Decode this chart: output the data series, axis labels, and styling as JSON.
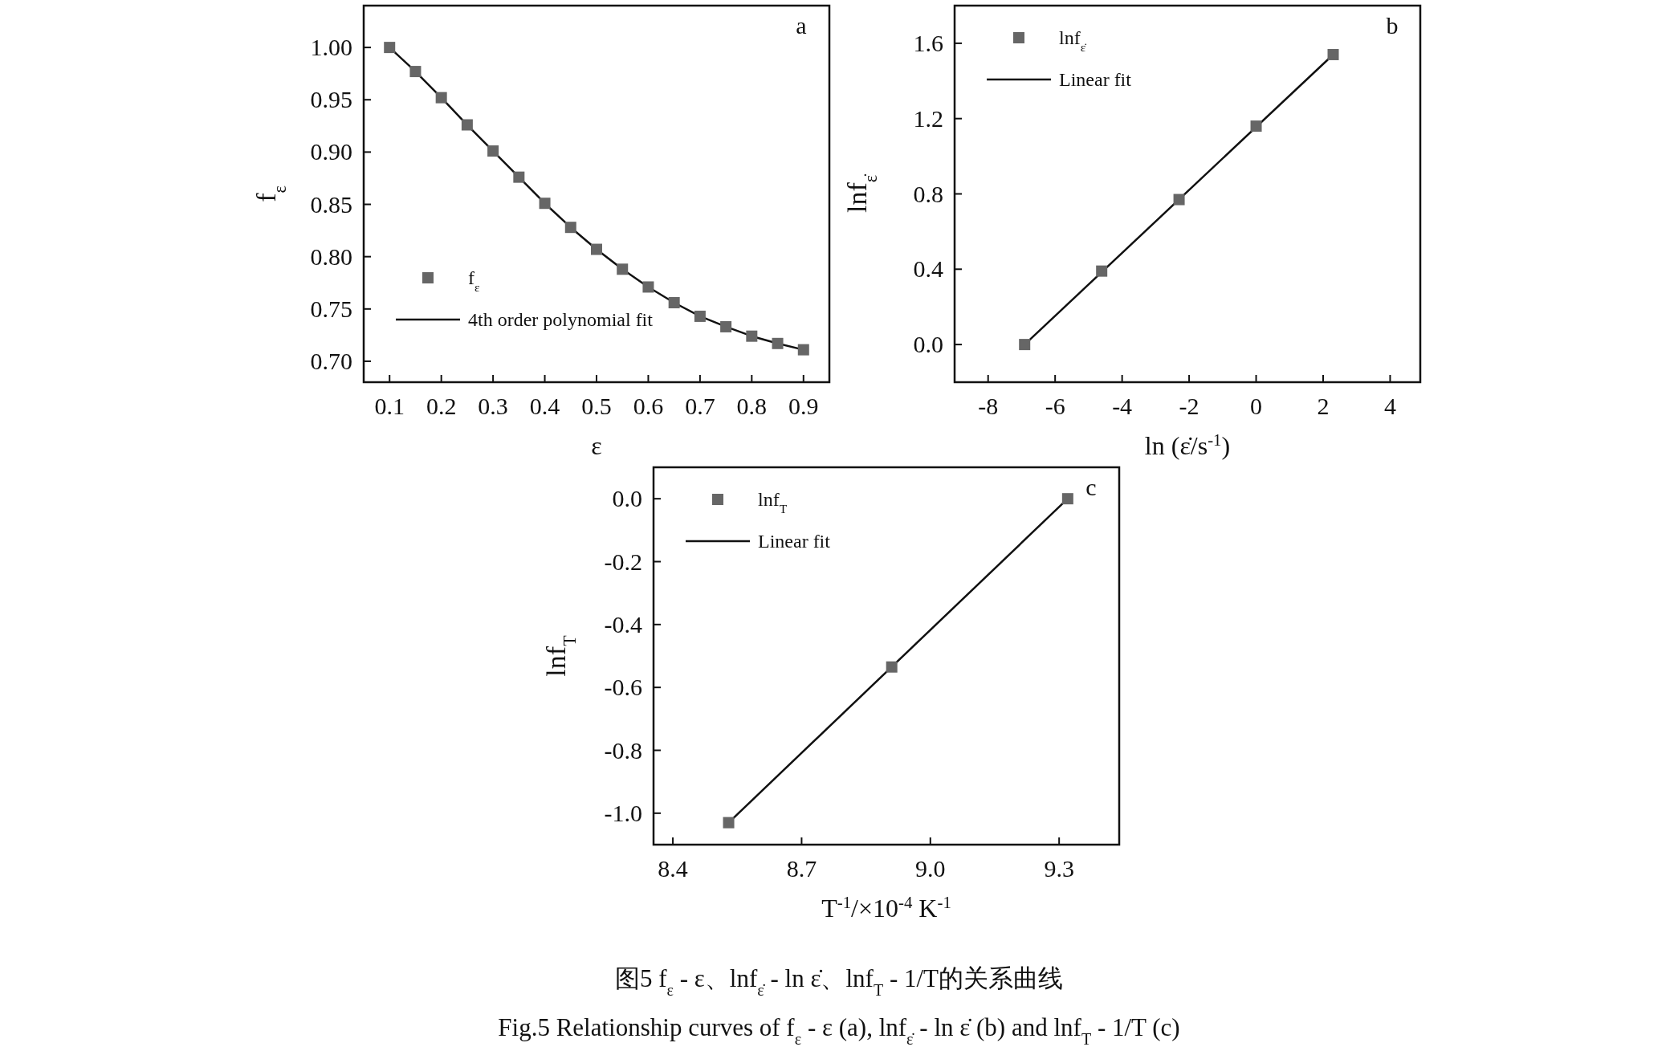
{
  "chart_data": [
    {
      "type": "scatter",
      "xlabel": "ε",
      "ylabel": "f$_{ε}$",
      "xlim": [
        0.05,
        0.95
      ],
      "ylim": [
        0.68,
        1.04
      ],
      "xticks": [
        0.1,
        0.2,
        0.3,
        0.4,
        0.5,
        0.6,
        0.7,
        0.8,
        0.9
      ],
      "yticks": [
        {
          "value": 0.7,
          "label": "0.70"
        },
        0.75,
        {
          "value": 0.8,
          "label": "0.80"
        },
        0.85,
        {
          "value": 0.9,
          "label": "0.90"
        },
        0.95,
        {
          "value": 1.0,
          "label": "1.00"
        }
      ],
      "legend": "bottom left",
      "grid": false,
      "annotations": [
        "a"
      ],
      "series": [
        {
          "name": "f$_{ε}$",
          "marker": "square",
          "color": "#666666",
          "x": [
            0.1,
            0.15,
            0.2,
            0.25,
            0.3,
            0.35,
            0.4,
            0.45,
            0.5,
            0.55,
            0.6,
            0.65,
            0.7,
            0.75,
            0.8,
            0.85,
            0.9
          ],
          "values": [
            1.0,
            0.977,
            0.952,
            0.926,
            0.901,
            0.876,
            0.851,
            0.828,
            0.807,
            0.788,
            0.771,
            0.756,
            0.743,
            0.733,
            0.724,
            0.717,
            0.711
          ]
        },
        {
          "name": "4th order polynomial fit",
          "type": "line",
          "color": "#111111",
          "x": [
            0.1,
            0.15,
            0.2,
            0.25,
            0.3,
            0.35,
            0.4,
            0.45,
            0.5,
            0.55,
            0.6,
            0.65,
            0.7,
            0.75,
            0.8,
            0.85,
            0.9
          ],
          "values": [
            1.0,
            0.977,
            0.952,
            0.926,
            0.901,
            0.876,
            0.851,
            0.828,
            0.807,
            0.788,
            0.771,
            0.756,
            0.743,
            0.733,
            0.724,
            0.717,
            0.711
          ]
        }
      ]
    },
    {
      "type": "scatter",
      "xlabel": "ln (ε̇/s$^{-1}$)",
      "ylabel": "lnf$_{ε̇}$",
      "xlim": [
        -9,
        4.9
      ],
      "ylim": [
        -0.2,
        1.8
      ],
      "xticks": [
        -8,
        -6,
        -4,
        -2,
        0,
        2,
        4
      ],
      "yticks": [
        {
          "value": 0,
          "label": "0.0"
        },
        0.4,
        0.8,
        1.2,
        1.6
      ],
      "legend": "top left",
      "grid": false,
      "annotations": [
        "b"
      ],
      "series": [
        {
          "name": "lnf$_{ε̇}$",
          "marker": "square",
          "color": "#666666",
          "x": [
            -6.91,
            -4.61,
            -2.3,
            0,
            2.3
          ],
          "values": [
            0,
            0.39,
            0.77,
            1.16,
            1.54
          ]
        },
        {
          "name": "Linear fit",
          "type": "line",
          "color": "#111111",
          "x": [
            -6.91,
            2.3
          ],
          "values": [
            0,
            1.54
          ]
        }
      ]
    },
    {
      "type": "scatter",
      "xlabel": "T$^{-1}$/×10$^{-4}$ K$^{-1}$",
      "ylabel": "lnf$_{T}$",
      "xlim": [
        8.355,
        9.44
      ],
      "ylim": [
        -1.1,
        0.1
      ],
      "xticks": [
        8.4,
        8.7,
        {
          "value": 9,
          "label": "9.0"
        },
        9.3
      ],
      "yticks": [
        {
          "value": -1,
          "label": "-1.0"
        },
        {
          "value": -0.8,
          "label": "-0.8"
        },
        {
          "value": -0.6,
          "label": "-0.6"
        },
        {
          "value": -0.4,
          "label": "-0.4"
        },
        {
          "value": -0.2,
          "label": "-0.2"
        },
        {
          "value": 0,
          "label": "0.0"
        }
      ],
      "legend": "top left",
      "grid": false,
      "annotations": [
        "c",
        "图5 f$_{ε}$ - ε、lnf$_{ε̇}$ - ln ε̇、lnf$_{T}$ - 1/T的关系曲线",
        "Fig.5  Relationship curves of f$_{ε}$ - ε (a), lnf$_{ε̇}$ - ln ε̇ (b) and lnf$_{T}$ - 1/T (c)"
      ],
      "series": [
        {
          "name": "lnf$_{T}$",
          "marker": "square",
          "color": "#666666",
          "x": [
            8.53,
            8.91,
            9.32
          ],
          "values": [
            -1.03,
            -0.535,
            0
          ]
        },
        {
          "name": "Linear fit",
          "type": "line",
          "color": "#111111",
          "x": [
            8.53,
            9.32
          ],
          "values": [
            -1.03,
            0
          ]
        }
      ]
    }
  ]
}
